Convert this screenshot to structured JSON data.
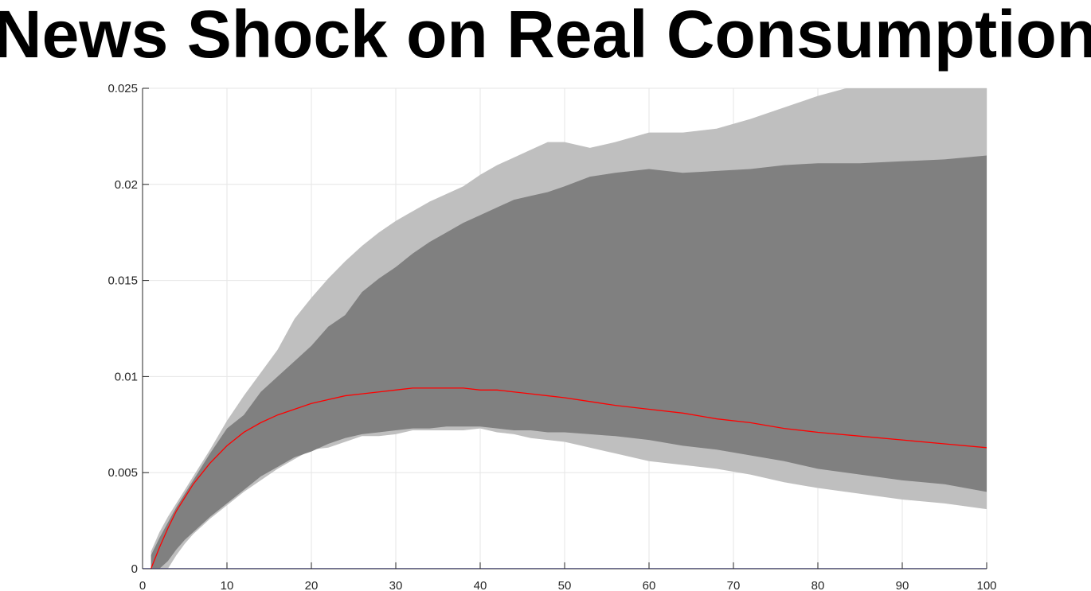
{
  "chart_data": {
    "type": "band_line",
    "title": "News Shock on Real Consumption",
    "x": [
      1,
      2,
      3,
      4,
      5,
      6,
      8,
      10,
      12,
      14,
      16,
      18,
      20,
      22,
      24,
      26,
      28,
      30,
      32,
      34,
      36,
      38,
      40,
      42,
      44,
      46,
      48,
      50,
      53,
      56,
      60,
      64,
      68,
      72,
      76,
      80,
      85,
      90,
      95,
      100
    ],
    "bands": [
      {
        "color": "#bfbfbf",
        "upper": [
          0.0009,
          0.0019,
          0.0027,
          0.0034,
          0.0041,
          0.0048,
          0.0062,
          0.0077,
          0.009,
          0.0102,
          0.0114,
          0.013,
          0.0141,
          0.0151,
          0.016,
          0.0168,
          0.0175,
          0.0181,
          0.0186,
          0.0191,
          0.0195,
          0.0199,
          0.0205,
          0.021,
          0.0214,
          0.0218,
          0.0222,
          0.0222,
          0.0219,
          0.0222,
          0.0227,
          0.0227,
          0.0229,
          0.0234,
          0.024,
          0.0246,
          0.0252,
          0.0255,
          0.0258,
          0.026
        ],
        "lower": [
          0,
          0,
          0,
          0.0007,
          0.0013,
          0.0018,
          0.0026,
          0.0033,
          0.004,
          0.0046,
          0.0052,
          0.0057,
          0.0062,
          0.0063,
          0.0066,
          0.0069,
          0.0069,
          0.007,
          0.0072,
          0.0072,
          0.0072,
          0.0072,
          0.0073,
          0.0071,
          0.007,
          0.0068,
          0.0067,
          0.0066,
          0.0063,
          0.006,
          0.0056,
          0.0054,
          0.0052,
          0.0049,
          0.0045,
          0.0042,
          0.0039,
          0.0036,
          0.0034,
          0.0031
        ]
      },
      {
        "color": "#808080",
        "upper": [
          0.0007,
          0.0016,
          0.0024,
          0.0032,
          0.0039,
          0.0046,
          0.006,
          0.0073,
          0.008,
          0.0092,
          0.01,
          0.0108,
          0.0116,
          0.0126,
          0.0132,
          0.0144,
          0.0151,
          0.0157,
          0.0164,
          0.017,
          0.0175,
          0.018,
          0.0184,
          0.0188,
          0.0192,
          0.0194,
          0.0196,
          0.0199,
          0.0204,
          0.0206,
          0.0208,
          0.0206,
          0.0207,
          0.0208,
          0.021,
          0.0211,
          0.0211,
          0.0212,
          0.0213,
          0.0215
        ],
        "lower": [
          0,
          0,
          0.0004,
          0.001,
          0.0015,
          0.0019,
          0.0027,
          0.0034,
          0.0041,
          0.0048,
          0.0053,
          0.0058,
          0.0061,
          0.0065,
          0.0068,
          0.007,
          0.0071,
          0.0072,
          0.0073,
          0.0073,
          0.0074,
          0.0074,
          0.0074,
          0.0073,
          0.0072,
          0.0072,
          0.0071,
          0.0071,
          0.007,
          0.0069,
          0.0067,
          0.0064,
          0.0062,
          0.0059,
          0.0056,
          0.0052,
          0.0049,
          0.0046,
          0.0044,
          0.004
        ]
      }
    ],
    "series": [
      {
        "color": "#ff0000",
        "values": [
          0,
          0.0011,
          0.0021,
          0.003,
          0.0037,
          0.0044,
          0.0055,
          0.0064,
          0.0071,
          0.0076,
          0.008,
          0.0083,
          0.0086,
          0.0088,
          0.009,
          0.0091,
          0.0092,
          0.0093,
          0.0094,
          0.0094,
          0.0094,
          0.0094,
          0.0093,
          0.0093,
          0.0092,
          0.0091,
          0.009,
          0.0089,
          0.0087,
          0.0085,
          0.0083,
          0.0081,
          0.0078,
          0.0076,
          0.0073,
          0.0071,
          0.0069,
          0.0067,
          0.0065,
          0.0063
        ]
      }
    ],
    "hline": {
      "value": 0,
      "color": "#6b6bff"
    },
    "xlim": [
      0,
      100
    ],
    "xticks": [
      0,
      10,
      20,
      30,
      40,
      50,
      60,
      70,
      80,
      90,
      100
    ],
    "ylim": [
      0,
      0.025
    ],
    "yticks": [
      0,
      0.005,
      0.01,
      0.015,
      0.02,
      0.025
    ],
    "grid": true
  }
}
